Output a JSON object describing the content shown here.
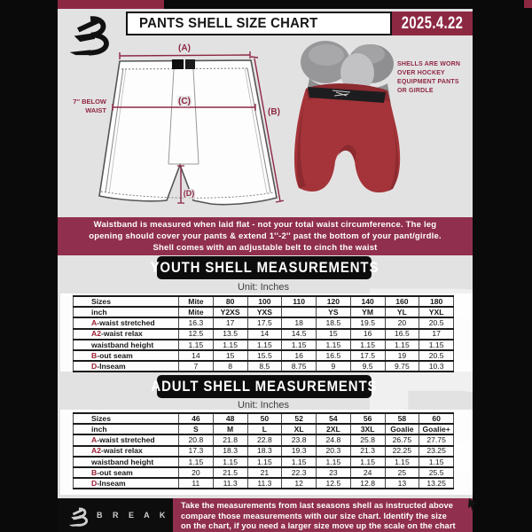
{
  "header": {
    "title": "PANTS SHELL SIZE CHART",
    "date": "2025.4.22"
  },
  "diagram": {
    "label_a": "(A)",
    "label_b": "(B)",
    "label_c": "(C)",
    "label_d": "(D)",
    "note_line1": "7'' BELOW",
    "note_line2": "WAIST"
  },
  "photo_note": {
    "lines": [
      "SHELLS ARE WORN",
      "OVER HOCKEY",
      "EQUIPMENT PANTS",
      "OR GIRDLE"
    ]
  },
  "info_band": {
    "lines": [
      "Waistband is measured when laid flat - not your total waist circumference. The leg",
      "opening should cover your pants & extend 1''-2'' past the bottom of your pant/girdle.",
      "Shell comes with an adjustable belt to cinch the waist"
    ]
  },
  "youth": {
    "title": "YOUTH SHELL MEASUREMENTS",
    "unit": "Unit: Inches",
    "rows": [
      {
        "prefix": "",
        "label": "Sizes",
        "header": true,
        "cells": [
          "Mite",
          "80",
          "100",
          "110",
          "120",
          "140",
          "160",
          "180"
        ]
      },
      {
        "prefix": "",
        "label": "inch",
        "header": true,
        "cells": [
          "Mite",
          "Y2XS",
          "YXS",
          "",
          "YS",
          "YM",
          "YL",
          "YXL"
        ]
      },
      {
        "prefix": "A",
        "label": "-waist stretched",
        "header": false,
        "cells": [
          "16.3",
          "17",
          "17.5",
          "18",
          "18.5",
          "19.5",
          "20",
          "20.5"
        ]
      },
      {
        "prefix": "A2",
        "label": "-waist relax",
        "header": false,
        "cells": [
          "12.5",
          "13.5",
          "14",
          "14.5",
          "15",
          "16",
          "16.5",
          "17"
        ]
      },
      {
        "prefix": "",
        "label": "waistband height",
        "header": false,
        "cells": [
          "1.15",
          "1.15",
          "1.15",
          "1.15",
          "1.15",
          "1.15",
          "1.15",
          "1.15"
        ]
      },
      {
        "prefix": "B",
        "label": "-out seam",
        "header": false,
        "cells": [
          "14",
          "15",
          "15.5",
          "16",
          "16.5",
          "17.5",
          "19",
          "20.5"
        ]
      },
      {
        "prefix": "D",
        "label": "-Inseam",
        "header": false,
        "cells": [
          "7",
          "8",
          "8.5",
          "8.75",
          "9",
          "9.5",
          "9.75",
          "10.3"
        ]
      }
    ]
  },
  "adult": {
    "title": "ADULT SHELL MEASUREMENTS",
    "unit": "Unit: Inches",
    "rows": [
      {
        "prefix": "",
        "label": "Sizes",
        "header": true,
        "cells": [
          "46",
          "48",
          "50",
          "52",
          "54",
          "56",
          "58",
          "60"
        ]
      },
      {
        "prefix": "",
        "label": "inch",
        "header": true,
        "cells": [
          "S",
          "M",
          "L",
          "XL",
          "2XL",
          "3XL",
          "Goalie",
          "Goalie+"
        ]
      },
      {
        "prefix": "A",
        "label": "-waist stretched",
        "header": false,
        "cells": [
          "20.8",
          "21.8",
          "22.8",
          "23.8",
          "24.8",
          "25.8",
          "26.75",
          "27.75"
        ]
      },
      {
        "prefix": "A2",
        "label": "-waist relax",
        "header": false,
        "cells": [
          "17.3",
          "18.3",
          "18.3",
          "19.3",
          "20.3",
          "21.3",
          "22.25",
          "23.25"
        ]
      },
      {
        "prefix": "",
        "label": "waistband height",
        "header": false,
        "cells": [
          "1.15",
          "1.15",
          "1.15",
          "1.15",
          "1.15",
          "1.15",
          "1.15",
          "1.15"
        ]
      },
      {
        "prefix": "B",
        "label": "-out seam",
        "header": false,
        "cells": [
          "20",
          "21.5",
          "21",
          "22.3",
          "23",
          "24",
          "25",
          "25.5"
        ]
      },
      {
        "prefix": "D",
        "label": "-Inseam",
        "header": false,
        "cells": [
          "11",
          "11.3",
          "11.3",
          "12",
          "12.5",
          "12.8",
          "13",
          "13.25"
        ]
      }
    ]
  },
  "watermark": {
    "letter": "B"
  },
  "footer": {
    "brand": "B R E A K A W A Y",
    "lines": [
      "Take the measurements from last seasons shell as instructed above",
      "compare those measurements  with our size chart. Identify the size",
      "on the chart, if you need a larger size move up the scale on the chart"
    ]
  },
  "colors": {
    "maroon": "#8d2843",
    "band": "#90304e",
    "page": "#e3e2e3",
    "accent_letter": "#9c2035",
    "shell_red": "#a43439"
  }
}
